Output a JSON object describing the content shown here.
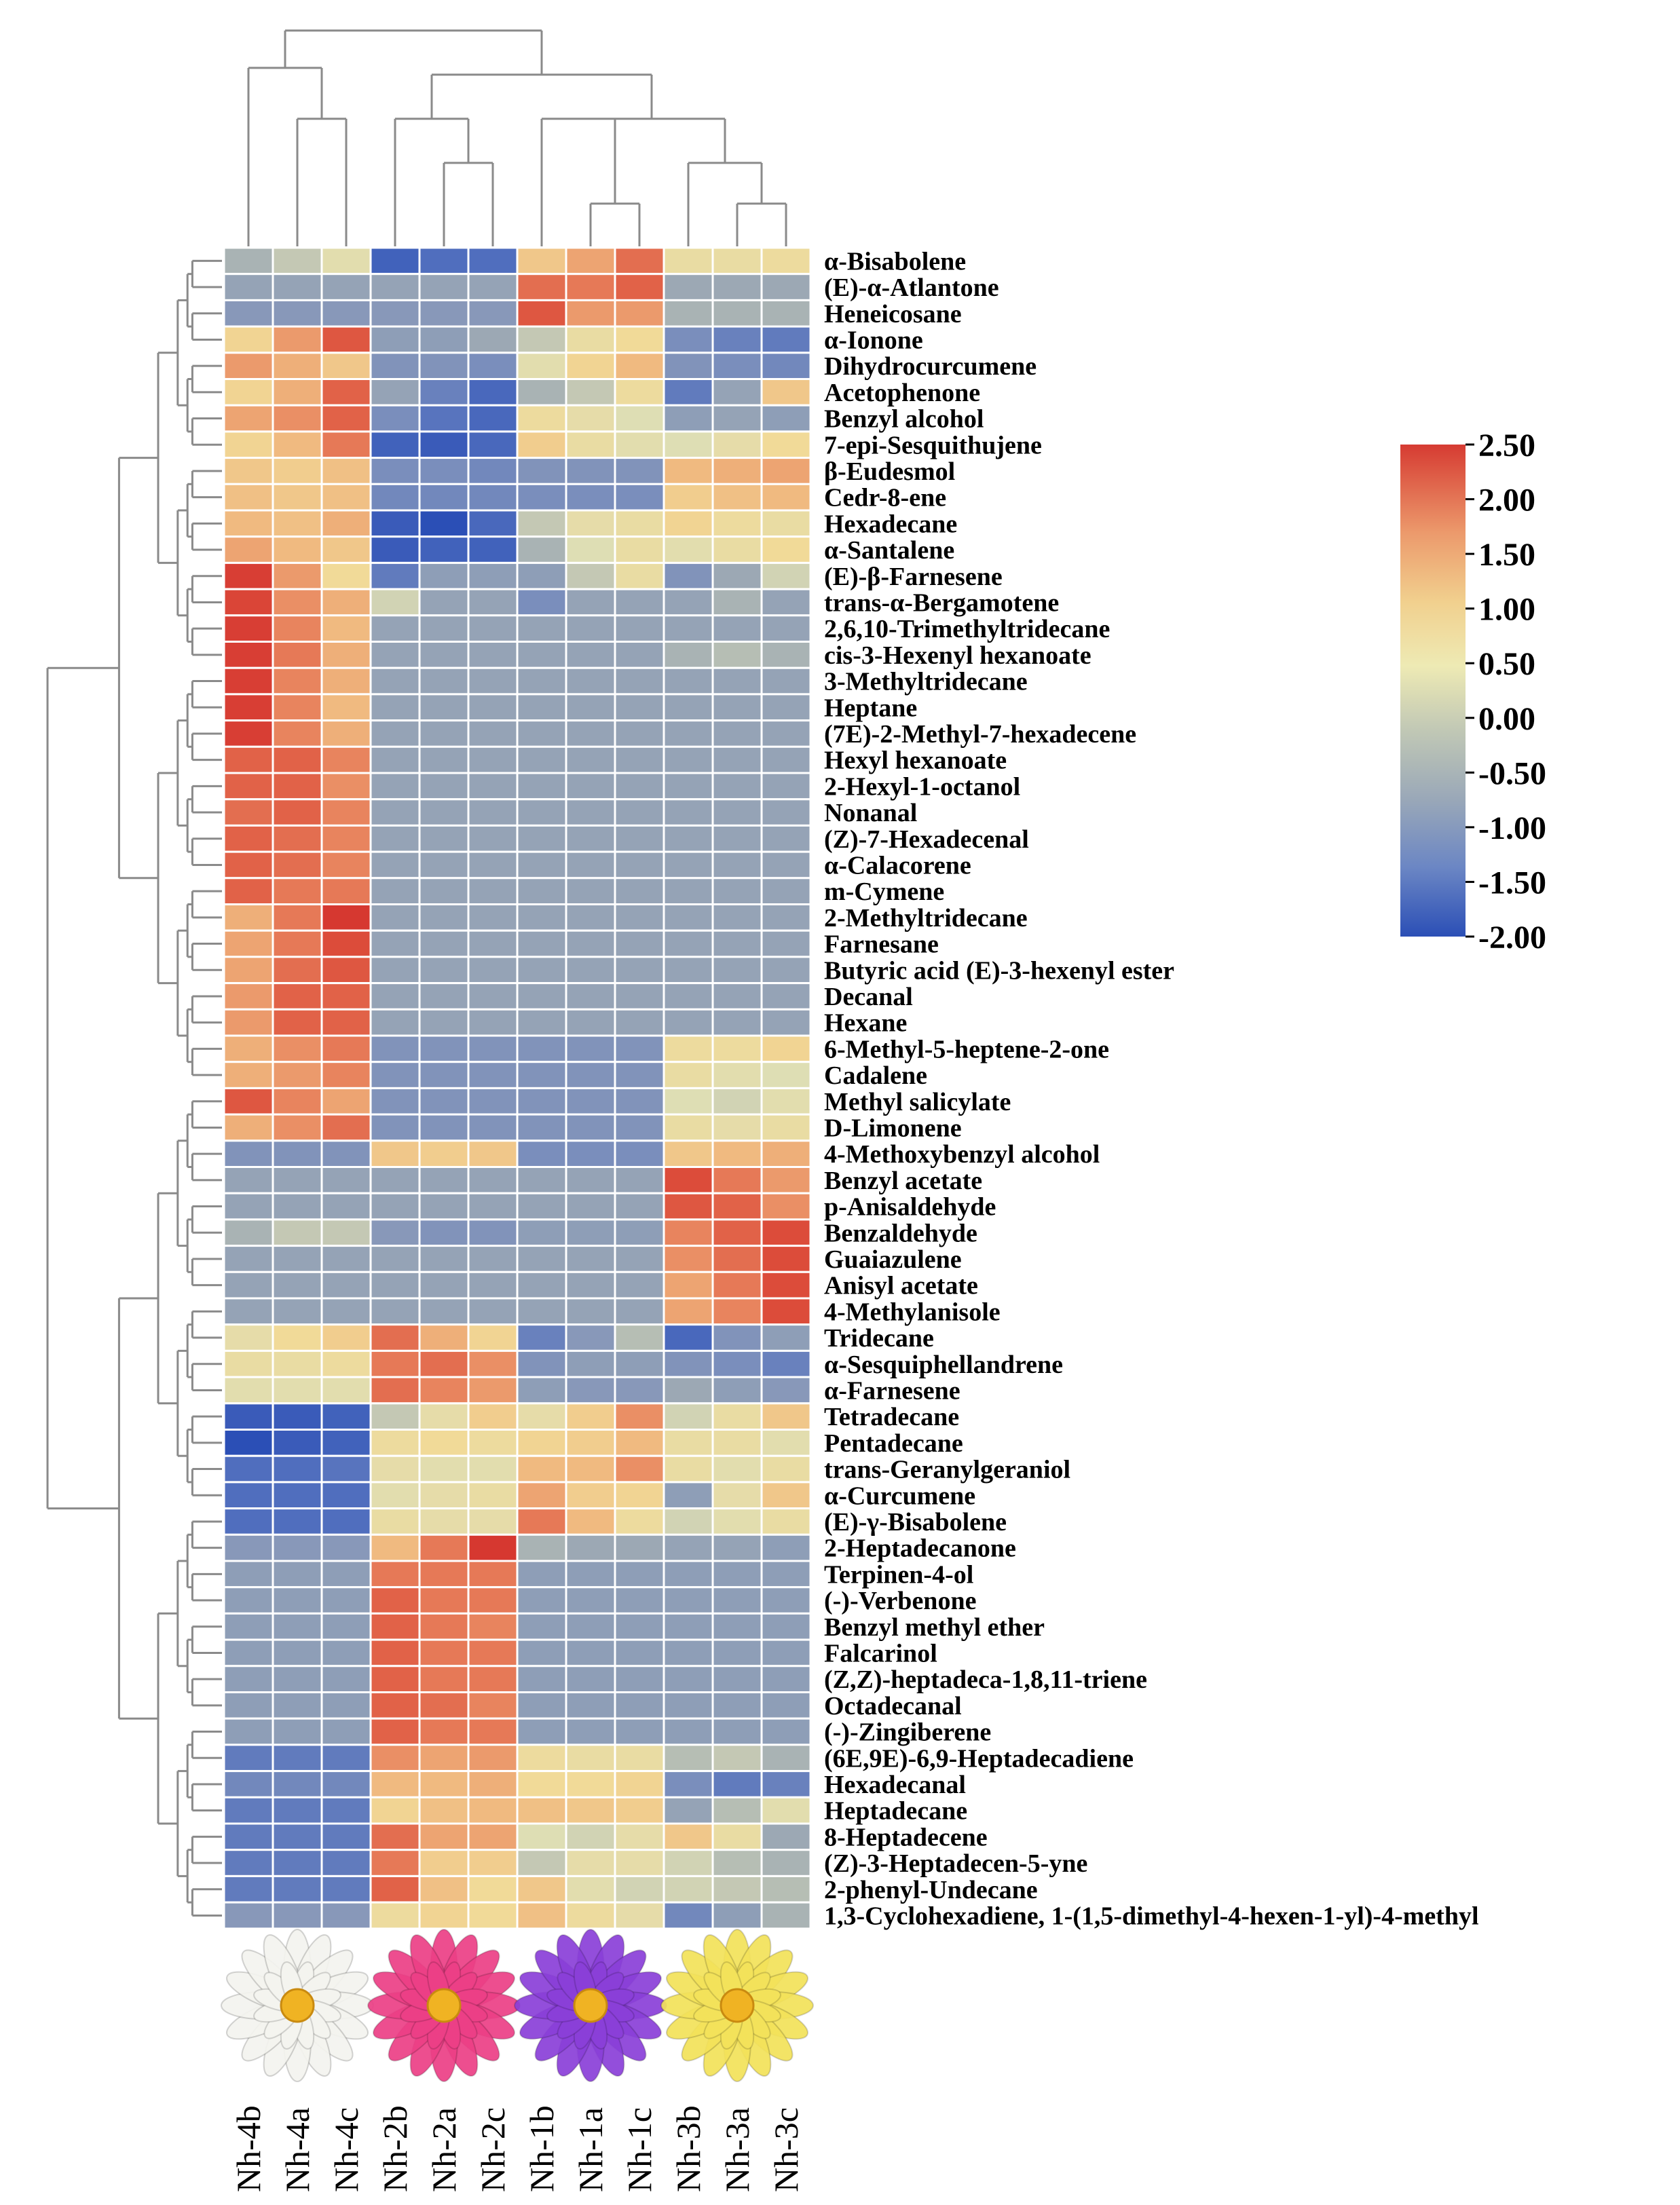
{
  "chart_data": {
    "type": "heatmap",
    "title": "",
    "columns": [
      "Nh-4b",
      "Nh-4a",
      "Nh-4c",
      "Nh-2b",
      "Nh-2a",
      "Nh-2c",
      "Nh-1b",
      "Nh-1a",
      "Nh-1c",
      "Nh-3b",
      "Nh-3a",
      "Nh-3c"
    ],
    "groups": [
      {
        "name": "white-water-lily",
        "columns": [
          "Nh-4b",
          "Nh-4a",
          "Nh-4c"
        ],
        "flower_color": "#f4f4ef"
      },
      {
        "name": "pink-water-lily",
        "columns": [
          "Nh-2b",
          "Nh-2a",
          "Nh-2c"
        ],
        "flower_color": "#ec3f86"
      },
      {
        "name": "purple-water-lily",
        "columns": [
          "Nh-1b",
          "Nh-1a",
          "Nh-1c"
        ],
        "flower_color": "#8a3fd8"
      },
      {
        "name": "yellow-water-lily",
        "columns": [
          "Nh-3b",
          "Nh-3a",
          "Nh-3c"
        ],
        "flower_color": "#f3e25a"
      }
    ],
    "rows": [
      "α-Bisabolene",
      "(E)-α-Atlantone",
      "Heneicosane",
      "α-Ionone",
      "Dihydrocurcumene",
      "Acetophenone",
      "Benzyl alcohol",
      "7-epi-Sesquithujene",
      "β-Eudesmol",
      "Cedr-8-ene",
      "Hexadecane",
      "α-Santalene",
      "(E)-β-Farnesene",
      "trans-α-Bergamotene",
      "2,6,10-Trimethyltridecane",
      "cis-3-Hexenyl hexanoate",
      "3-Methyltridecane",
      "Heptane",
      "(7E)-2-Methyl-7-hexadecene",
      "Hexyl hexanoate",
      "2-Hexyl-1-octanol",
      "Nonanal",
      "(Z)-7-Hexadecenal",
      "α-Calacorene",
      "m-Cymene",
      "2-Methyltridecane",
      "Farnesane",
      "Butyric acid (E)-3-hexenyl ester",
      "Decanal",
      "Hexane",
      "6-Methyl-5-heptene-2-one",
      "Cadalene",
      "Methyl salicylate",
      "D-Limonene",
      "4-Methoxybenzyl alcohol",
      "Benzyl acetate",
      "p-Anisaldehyde",
      "Benzaldehyde",
      "Guaiazulene",
      "Anisyl acetate",
      "4-Methylanisole",
      "Tridecane",
      "α-Sesquiphellandrene",
      "α-Farnesene",
      "Tetradecane",
      "Pentadecane",
      "trans-Geranylgeraniol",
      "α-Curcumene",
      "(E)-γ-Bisabolene",
      "2-Heptadecanone",
      "Terpinen-4-ol",
      "(-)-Verbenone",
      "Benzyl methyl ether",
      "Falcarinol",
      "(Z,Z)-heptadeca-1,8,11-triene",
      "Octadecanal",
      "(-)-Zingiberene",
      "(6E,9E)-6,9-Heptadecadiene",
      "Hexadecanal",
      "Heptadecane",
      "8-Heptadecene",
      "(Z)-3-Heptadecen-5-yne",
      "2-phenyl-Undecane",
      "1,3-Cyclohexadiene, 1-(1,5-dimethyl-4-hexen-1-yl)-4-methyl"
    ],
    "values": [
      [
        -0.4,
        -0.2,
        0.1,
        -1.7,
        -1.5,
        -1.5,
        0.8,
        1.2,
        1.7,
        0.3,
        0.3,
        0.4
      ],
      [
        -0.6,
        -0.6,
        -0.6,
        -0.6,
        -0.6,
        -0.6,
        1.7,
        1.6,
        1.8,
        -0.5,
        -0.5,
        -0.5
      ],
      [
        -0.8,
        -0.8,
        -0.8,
        -0.8,
        -0.8,
        -0.8,
        1.9,
        1.3,
        1.3,
        -0.4,
        -0.4,
        -0.4
      ],
      [
        0.6,
        1.3,
        1.9,
        -0.7,
        -0.7,
        -0.5,
        -0.2,
        0.3,
        0.5,
        -1.0,
        -1.2,
        -1.3
      ],
      [
        1.3,
        1.1,
        0.8,
        -0.9,
        -0.9,
        -1.0,
        0.1,
        0.6,
        1.0,
        -0.9,
        -1.0,
        -1.1
      ],
      [
        0.6,
        1.1,
        1.8,
        -0.6,
        -1.2,
        -1.6,
        -0.4,
        -0.2,
        0.4,
        -1.3,
        -0.6,
        0.8
      ],
      [
        1.2,
        1.4,
        1.8,
        -1.0,
        -1.4,
        -1.6,
        0.4,
        0.2,
        0.0,
        -0.7,
        -0.6,
        -0.7
      ],
      [
        0.6,
        1.0,
        1.6,
        -1.7,
        -1.8,
        -1.6,
        0.7,
        0.3,
        0.1,
        0.0,
        0.2,
        0.5
      ],
      [
        0.8,
        0.7,
        0.9,
        -1.0,
        -1.0,
        -1.1,
        -0.9,
        -0.9,
        -0.9,
        1.0,
        1.1,
        1.2
      ],
      [
        0.9,
        0.8,
        0.9,
        -1.1,
        -1.1,
        -1.1,
        -1.0,
        -1.0,
        -1.0,
        0.7,
        0.9,
        1.0
      ],
      [
        1.0,
        0.9,
        1.1,
        -1.8,
        -2.0,
        -1.6,
        -0.2,
        0.2,
        0.3,
        0.6,
        0.4,
        0.3
      ],
      [
        1.2,
        1.0,
        0.8,
        -1.8,
        -1.7,
        -1.7,
        -0.4,
        0.0,
        0.3,
        0.1,
        0.3,
        0.5
      ],
      [
        2.2,
        1.3,
        0.5,
        -1.3,
        -0.7,
        -0.7,
        -0.7,
        -0.2,
        0.3,
        -0.9,
        -0.5,
        -0.1
      ],
      [
        2.1,
        1.4,
        1.1,
        -0.1,
        -0.6,
        -0.6,
        -1.0,
        -0.6,
        -0.6,
        -0.6,
        -0.4,
        -0.6
      ],
      [
        2.2,
        1.5,
        1.0,
        -0.6,
        -0.6,
        -0.6,
        -0.6,
        -0.6,
        -0.6,
        -0.6,
        -0.6,
        -0.6
      ],
      [
        2.2,
        1.6,
        1.1,
        -0.6,
        -0.6,
        -0.6,
        -0.6,
        -0.6,
        -0.6,
        -0.4,
        -0.3,
        -0.4
      ],
      [
        2.2,
        1.5,
        1.1,
        -0.6,
        -0.6,
        -0.6,
        -0.6,
        -0.6,
        -0.6,
        -0.6,
        -0.6,
        -0.6
      ],
      [
        2.2,
        1.5,
        1.0,
        -0.6,
        -0.6,
        -0.6,
        -0.6,
        -0.6,
        -0.6,
        -0.6,
        -0.6,
        -0.6
      ],
      [
        2.2,
        1.5,
        1.1,
        -0.6,
        -0.6,
        -0.6,
        -0.6,
        -0.6,
        -0.6,
        -0.6,
        -0.6,
        -0.6
      ],
      [
        1.8,
        1.8,
        1.5,
        -0.6,
        -0.6,
        -0.6,
        -0.6,
        -0.6,
        -0.6,
        -0.6,
        -0.6,
        -0.6
      ],
      [
        1.8,
        1.8,
        1.4,
        -0.6,
        -0.6,
        -0.6,
        -0.6,
        -0.6,
        -0.6,
        -0.6,
        -0.6,
        -0.6
      ],
      [
        1.7,
        1.8,
        1.5,
        -0.6,
        -0.6,
        -0.6,
        -0.6,
        -0.6,
        -0.6,
        -0.6,
        -0.6,
        -0.6
      ],
      [
        1.8,
        1.7,
        1.5,
        -0.6,
        -0.6,
        -0.6,
        -0.6,
        -0.6,
        -0.6,
        -0.6,
        -0.6,
        -0.6
      ],
      [
        1.8,
        1.7,
        1.5,
        -0.6,
        -0.6,
        -0.6,
        -0.6,
        -0.6,
        -0.6,
        -0.6,
        -0.6,
        -0.6
      ],
      [
        1.8,
        1.6,
        1.6,
        -0.6,
        -0.6,
        -0.6,
        -0.6,
        -0.6,
        -0.6,
        -0.6,
        -0.6,
        -0.6
      ],
      [
        1.1,
        1.6,
        2.3,
        -0.6,
        -0.6,
        -0.6,
        -0.6,
        -0.6,
        -0.6,
        -0.6,
        -0.6,
        -0.6
      ],
      [
        1.2,
        1.6,
        2.0,
        -0.6,
        -0.6,
        -0.6,
        -0.6,
        -0.6,
        -0.6,
        -0.6,
        -0.6,
        -0.6
      ],
      [
        1.2,
        1.7,
        1.9,
        -0.6,
        -0.6,
        -0.6,
        -0.6,
        -0.6,
        -0.6,
        -0.6,
        -0.6,
        -0.6
      ],
      [
        1.3,
        1.8,
        1.8,
        -0.6,
        -0.6,
        -0.6,
        -0.6,
        -0.6,
        -0.6,
        -0.6,
        -0.6,
        -0.6
      ],
      [
        1.3,
        1.8,
        1.8,
        -0.6,
        -0.6,
        -0.6,
        -0.6,
        -0.6,
        -0.6,
        -0.6,
        -0.6,
        -0.6
      ],
      [
        1.1,
        1.4,
        1.6,
        -0.9,
        -0.9,
        -0.9,
        -0.9,
        -0.9,
        -0.9,
        0.4,
        0.4,
        0.6
      ],
      [
        1.1,
        1.3,
        1.5,
        -0.9,
        -0.9,
        -0.9,
        -0.9,
        -0.9,
        -0.9,
        0.3,
        0.1,
        0.0
      ],
      [
        1.9,
        1.5,
        1.2,
        -0.9,
        -0.9,
        -0.9,
        -0.9,
        -0.9,
        -0.9,
        0.0,
        -0.1,
        0.1
      ],
      [
        1.1,
        1.4,
        1.7,
        -0.9,
        -0.9,
        -0.9,
        -0.9,
        -0.9,
        -0.9,
        0.3,
        0.2,
        0.3
      ],
      [
        -0.9,
        -0.9,
        -0.9,
        0.8,
        0.7,
        0.8,
        -1.0,
        -1.0,
        -1.0,
        0.8,
        1.0,
        1.1
      ],
      [
        -0.6,
        -0.6,
        -0.6,
        -0.6,
        -0.6,
        -0.6,
        -0.6,
        -0.6,
        -0.6,
        2.0,
        1.6,
        1.3
      ],
      [
        -0.6,
        -0.6,
        -0.6,
        -0.6,
        -0.6,
        -0.6,
        -0.6,
        -0.6,
        -0.6,
        1.9,
        1.8,
        1.4
      ],
      [
        -0.4,
        -0.2,
        -0.2,
        -0.8,
        -0.9,
        -0.9,
        -0.7,
        -0.7,
        -0.7,
        1.5,
        1.8,
        2.0
      ],
      [
        -0.6,
        -0.6,
        -0.6,
        -0.6,
        -0.6,
        -0.6,
        -0.6,
        -0.6,
        -0.6,
        1.4,
        1.7,
        2.0
      ],
      [
        -0.6,
        -0.6,
        -0.6,
        -0.6,
        -0.6,
        -0.6,
        -0.6,
        -0.6,
        -0.6,
        1.2,
        1.6,
        2.0
      ],
      [
        -0.6,
        -0.6,
        -0.6,
        -0.6,
        -0.6,
        -0.6,
        -0.6,
        -0.6,
        -0.6,
        1.2,
        1.5,
        2.0
      ],
      [
        0.2,
        0.5,
        0.7,
        1.7,
        1.1,
        0.6,
        -1.2,
        -0.8,
        -0.3,
        -1.6,
        -0.9,
        -0.7
      ],
      [
        0.3,
        0.3,
        0.4,
        1.6,
        1.7,
        1.4,
        -0.9,
        -0.7,
        -0.7,
        -0.9,
        -1.0,
        -1.2
      ],
      [
        0.1,
        0.1,
        0.1,
        1.7,
        1.5,
        1.3,
        -0.7,
        -0.8,
        -0.8,
        -0.5,
        -0.7,
        -0.8
      ],
      [
        -1.8,
        -1.8,
        -1.7,
        -0.2,
        0.2,
        0.7,
        0.2,
        0.7,
        1.4,
        -0.1,
        0.3,
        0.8
      ],
      [
        -2.0,
        -1.8,
        -1.7,
        0.4,
        0.5,
        0.4,
        0.6,
        0.7,
        1.0,
        0.3,
        0.3,
        0.1
      ],
      [
        -1.5,
        -1.5,
        -1.4,
        0.2,
        0.1,
        0.1,
        1.0,
        1.0,
        1.4,
        0.3,
        0.1,
        0.3
      ],
      [
        -1.5,
        -1.5,
        -1.5,
        0.1,
        0.2,
        0.3,
        1.2,
        0.7,
        0.6,
        -0.7,
        0.2,
        0.8
      ],
      [
        -1.5,
        -1.5,
        -1.5,
        0.3,
        0.2,
        0.2,
        1.6,
        1.0,
        0.4,
        -0.1,
        0.1,
        0.3
      ],
      [
        -0.8,
        -0.8,
        -0.8,
        1.0,
        1.6,
        2.3,
        -0.4,
        -0.5,
        -0.5,
        -0.6,
        -0.6,
        -0.7
      ],
      [
        -0.7,
        -0.7,
        -0.7,
        1.6,
        1.6,
        1.6,
        -0.7,
        -0.7,
        -0.7,
        -0.7,
        -0.7,
        -0.7
      ],
      [
        -0.7,
        -0.7,
        -0.7,
        1.8,
        1.6,
        1.6,
        -0.7,
        -0.7,
        -0.7,
        -0.7,
        -0.7,
        -0.7
      ],
      [
        -0.7,
        -0.7,
        -0.7,
        1.8,
        1.6,
        1.5,
        -0.7,
        -0.7,
        -0.7,
        -0.7,
        -0.7,
        -0.7
      ],
      [
        -0.7,
        -0.7,
        -0.7,
        1.8,
        1.6,
        1.6,
        -0.7,
        -0.7,
        -0.7,
        -0.7,
        -0.7,
        -0.7
      ],
      [
        -0.7,
        -0.7,
        -0.7,
        1.8,
        1.6,
        1.6,
        -0.7,
        -0.7,
        -0.7,
        -0.7,
        -0.7,
        -0.7
      ],
      [
        -0.7,
        -0.7,
        -0.7,
        1.8,
        1.7,
        1.5,
        -0.7,
        -0.7,
        -0.7,
        -0.7,
        -0.7,
        -0.7
      ],
      [
        -0.7,
        -0.7,
        -0.7,
        1.8,
        1.6,
        1.6,
        -0.7,
        -0.7,
        -0.7,
        -0.7,
        -0.7,
        -0.7
      ],
      [
        -1.3,
        -1.3,
        -1.3,
        1.4,
        1.2,
        1.3,
        0.4,
        0.3,
        0.3,
        -0.3,
        -0.2,
        -0.4
      ],
      [
        -1.1,
        -1.1,
        -1.1,
        1.0,
        1.0,
        1.1,
        0.5,
        0.5,
        0.6,
        -1.0,
        -1.3,
        -1.2
      ],
      [
        -1.3,
        -1.3,
        -1.3,
        0.6,
        0.9,
        1.0,
        0.9,
        0.8,
        0.7,
        -0.6,
        -0.3,
        0.1
      ],
      [
        -1.3,
        -1.3,
        -1.3,
        1.7,
        1.2,
        1.2,
        0.0,
        -0.1,
        0.2,
        0.8,
        0.3,
        -0.5
      ],
      [
        -1.3,
        -1.3,
        -1.3,
        1.6,
        0.7,
        0.7,
        -0.2,
        0.2,
        0.2,
        -0.1,
        -0.3,
        -0.4
      ],
      [
        -1.3,
        -1.3,
        -1.3,
        1.8,
        0.9,
        0.5,
        0.8,
        0.1,
        -0.1,
        -0.1,
        -0.2,
        -0.3
      ],
      [
        -0.8,
        -0.8,
        -0.8,
        0.4,
        0.6,
        0.5,
        0.9,
        0.4,
        0.2,
        -1.1,
        -0.7,
        -0.4
      ]
    ],
    "colorbar": {
      "min": -2.0,
      "max": 2.5,
      "ticks": [
        "2.50",
        "2.00",
        "1.50",
        "1.00",
        "0.50",
        "0.00",
        "-0.50",
        "-1.00",
        "-1.50",
        "-2.00"
      ],
      "colors": [
        "#2b4fb6",
        "#6b86c4",
        "#9aa8b8",
        "#c1c8b5",
        "#eeeab4",
        "#f1d08e",
        "#ec9a6c",
        "#d63b32"
      ]
    }
  }
}
